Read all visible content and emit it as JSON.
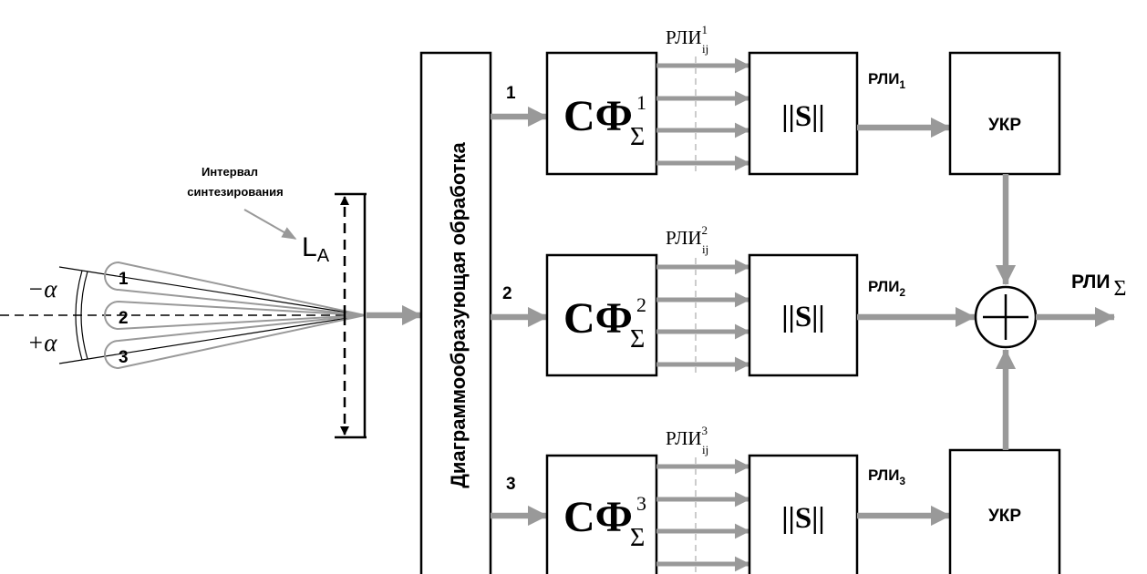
{
  "colors": {
    "arrow": "#999999",
    "outline": "#000000",
    "lobe": "#999999",
    "dashed_divider": "#cccccc"
  },
  "synthesis": {
    "interval_line1": "Интервал",
    "interval_line2": "синтезирования",
    "aperture_main": "L",
    "aperture_sub": "A",
    "angle_minus": "−α",
    "angle_plus": "+α",
    "beams": [
      "1",
      "2",
      "3"
    ]
  },
  "processor": {
    "label": "Диаграммообразующая обработка"
  },
  "channels": [
    {
      "number": "1",
      "filter_main": "СФ",
      "filter_sup": "1",
      "filter_sub": "Σ",
      "rli_pre": "РЛИ",
      "rli_pre_sup": "1",
      "rli_pre_sub": "ij",
      "mod_label": "||S||",
      "rli_out": "РЛИ",
      "rli_out_sub": "1",
      "ukr_label": "УКР"
    },
    {
      "number": "2",
      "filter_main": "СФ",
      "filter_sup": "2",
      "filter_sub": "Σ",
      "rli_pre": "РЛИ",
      "rli_pre_sup": "2",
      "rli_pre_sub": "ij",
      "mod_label": "||S||",
      "rli_out": "РЛИ",
      "rli_out_sub": "2",
      "ukr_label": ""
    },
    {
      "number": "3",
      "filter_main": "СФ",
      "filter_sup": "3",
      "filter_sub": "Σ",
      "rli_pre": "РЛИ",
      "rli_pre_sup": "3",
      "rli_pre_sub": "ij",
      "mod_label": "||S||",
      "rli_out": "РЛИ",
      "rli_out_sub": "3",
      "ukr_label": "УКР"
    }
  ],
  "summator": {
    "symbol": "+"
  },
  "output": {
    "label": "РЛИ",
    "sub": "Σ"
  }
}
